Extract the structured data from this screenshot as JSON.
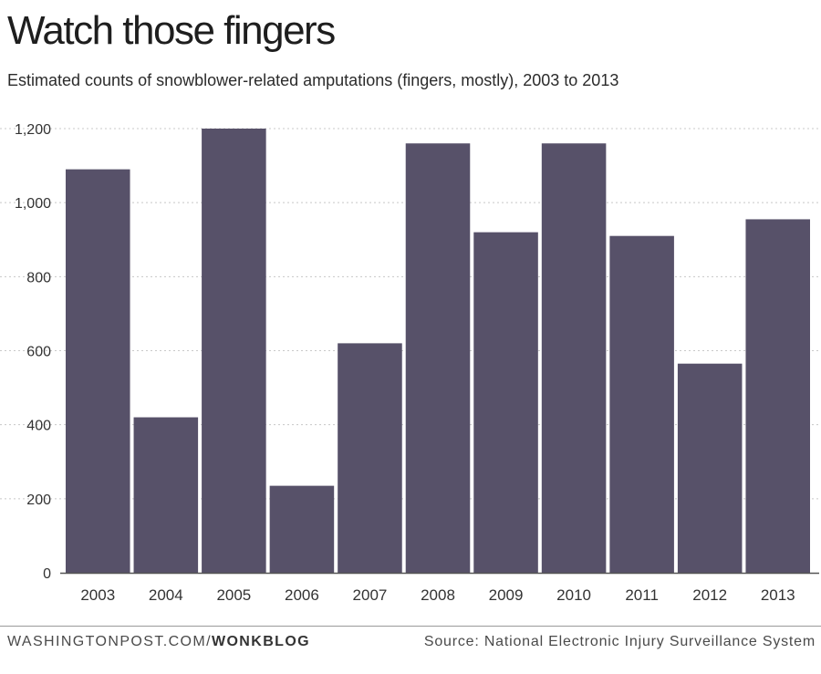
{
  "header": {
    "title": "Watch those fingers",
    "subtitle": "Estimated counts of snowblower-related amputations (fingers, mostly), 2003 to 2013"
  },
  "footer": {
    "site": "WASHINGTONPOST.COM/",
    "blog": "WONKBLOG",
    "source": "Source: National Electronic Injury Surveillance System"
  },
  "colors": {
    "bar": "#575169",
    "grid": "#c8c8c8",
    "axis": "#555555"
  },
  "chart_data": {
    "type": "bar",
    "title": "Watch those fingers",
    "subtitle": "Estimated counts of snowblower-related amputations (fingers, mostly), 2003 to 2013",
    "categories": [
      "2003",
      "2004",
      "2005",
      "2006",
      "2007",
      "2008",
      "2009",
      "2010",
      "2011",
      "2012",
      "2013"
    ],
    "values": [
      1090,
      420,
      1200,
      235,
      620,
      1160,
      920,
      1160,
      910,
      565,
      955
    ],
    "xlabel": "",
    "ylabel": "",
    "ylim": [
      0,
      1200
    ],
    "yticks": [
      0,
      200,
      400,
      600,
      800,
      1000,
      1200
    ],
    "ytick_labels": [
      "0",
      "200",
      "400",
      "600",
      "800",
      "1,000",
      "1,200"
    ],
    "grid": true,
    "legend": "none"
  }
}
